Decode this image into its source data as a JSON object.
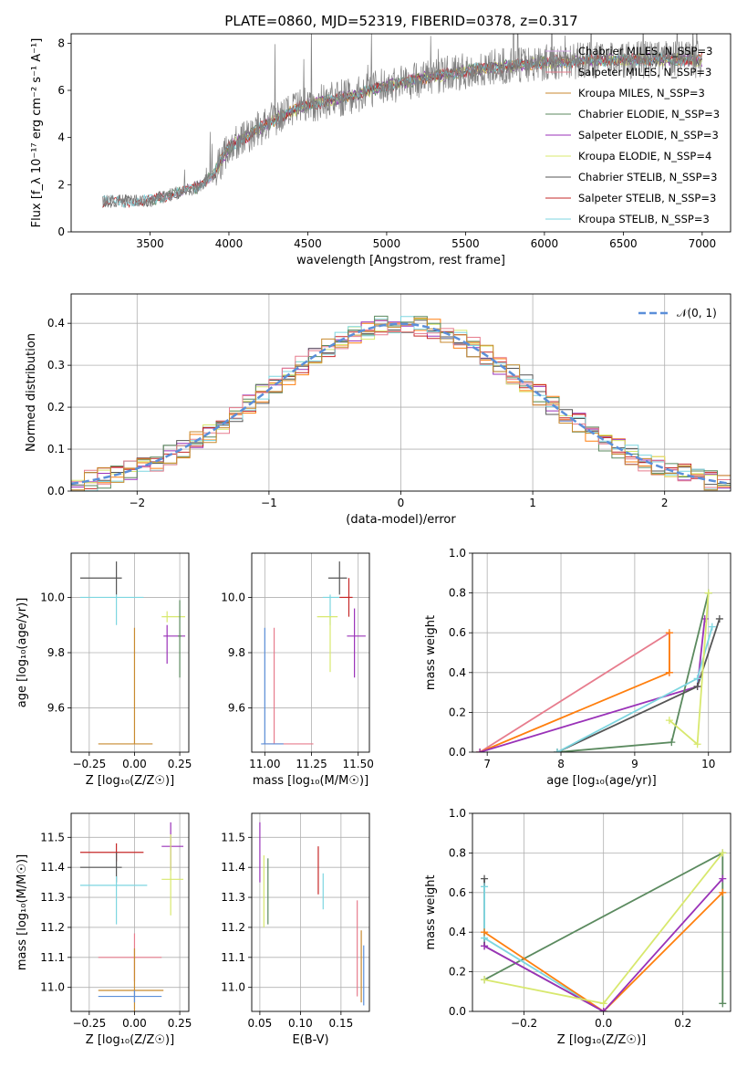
{
  "figure": {
    "title": "PLATE=0860, MJD=52319, FIBERID=0378, z=0.317"
  },
  "chart_data": [
    {
      "id": "spectrum",
      "type": "line",
      "xlabel": "wavelength [Angstrom, rest frame]",
      "ylabel": "Flux [f_λ 10⁻¹⁷ erg cm⁻² s⁻¹ A⁻¹]",
      "xlim": [
        3000,
        7180
      ],
      "ylim": [
        0,
        8.4
      ],
      "xticks": [
        3500,
        4000,
        4500,
        5000,
        5500,
        6000,
        6500,
        7000
      ],
      "yticks": [
        0,
        2,
        4,
        6,
        8
      ],
      "grid": false,
      "legend_position": "top-right",
      "data_shape": {
        "x": [
          3200,
          3500,
          3800,
          3900,
          4000,
          4300,
          4500,
          4800,
          5000,
          5300,
          5600,
          6000,
          6500,
          7000
        ],
        "y": [
          1.3,
          1.3,
          1.9,
          2.4,
          3.6,
          4.8,
          5.4,
          5.8,
          6.2,
          6.6,
          6.9,
          7.2,
          7.3,
          7.3
        ]
      },
      "series": [
        {
          "name": "Chabrier MILES, N_SSP=3",
          "color": "#d5a8e3"
        },
        {
          "name": "Salpeter MILES, N_SSP=3",
          "color": "#e77c8d"
        },
        {
          "name": "Kroupa MILES, N_SSP=3",
          "color": "#c88a2f"
        },
        {
          "name": "Chabrier ELODIE, N_SSP=3",
          "color": "#5b8a5f"
        },
        {
          "name": "Salpeter ELODIE, N_SSP=3",
          "color": "#9a32b8"
        },
        {
          "name": "Kroupa ELODIE, N_SSP=4",
          "color": "#d8e86e"
        },
        {
          "name": "Chabrier STELIB, N_SSP=3",
          "color": "#555555"
        },
        {
          "name": "Salpeter STELIB, N_SSP=3",
          "color": "#c62828"
        },
        {
          "name": "Kroupa STELIB, N_SSP=3",
          "color": "#7dd6e0"
        }
      ]
    },
    {
      "id": "residuals",
      "type": "line",
      "xlabel": "(data-model)/error",
      "ylabel": "Normed distribution",
      "xlim": [
        -2.5,
        2.5
      ],
      "ylim": [
        0,
        0.47
      ],
      "xticks": [
        -2,
        -1,
        0,
        1,
        2
      ],
      "yticks": [
        0.0,
        0.1,
        0.2,
        0.3,
        0.4
      ],
      "grid": true,
      "legend_position": "top-right",
      "legend": "𝒩(0, 1)",
      "gaussian_color": "#5b8fd9",
      "histogram_colors": [
        "#ff7f0e",
        "#9a32b8",
        "#d8e86e",
        "#555555",
        "#c62828",
        "#7dd6e0",
        "#5b8a5f",
        "#e77c8d",
        "#c88a2f"
      ]
    },
    {
      "id": "age_vs_Z",
      "type": "scatter",
      "xlabel": "Z [log₁₀(Z/Z☉)]",
      "ylabel": "age  [log₁₀(age/yr)]",
      "xlim": [
        -0.35,
        0.3
      ],
      "ylim": [
        9.44,
        10.16
      ],
      "xticks": [
        -0.25,
        0.0,
        0.25
      ],
      "yticks": [
        9.6,
        9.8,
        10.0
      ],
      "grid": true,
      "points": [
        {
          "x": -0.1,
          "y": 10.07,
          "xerr": [
            0.2,
            0.03
          ],
          "yerr": [
            0.06,
            0.06
          ],
          "color": "#555555"
        },
        {
          "x": -0.1,
          "y": 10.0,
          "xerr": [
            0.2,
            0.15
          ],
          "yerr": [
            0.1,
            0.01
          ],
          "color": "#7dd6e0"
        },
        {
          "x": 0.18,
          "y": 9.93,
          "xerr": [
            0.03,
            0.1
          ],
          "yerr": [
            0.02,
            0.02
          ],
          "color": "#d8e86e"
        },
        {
          "x": 0.18,
          "y": 9.86,
          "xerr": [
            0.02,
            0.1
          ],
          "yerr": [
            0.1,
            0.04
          ],
          "color": "#9a32b8"
        },
        {
          "x": 0.25,
          "y": 9.86,
          "xerr": [
            0.01,
            0.01
          ],
          "yerr": [
            0.15,
            0.13
          ],
          "color": "#5b8a5f"
        },
        {
          "x": 0.0,
          "y": 9.47,
          "xerr": [
            0.2,
            0.1
          ],
          "yerr": [
            0.0,
            0.42
          ],
          "color": "#c88a2f"
        }
      ]
    },
    {
      "id": "age_vs_mass",
      "type": "scatter",
      "xlabel": "mass [log₁₀(M/M☉)]",
      "ylabel": "",
      "xlim": [
        10.93,
        11.56
      ],
      "ylim": [
        9.44,
        10.16
      ],
      "xticks": [
        11.0,
        11.25,
        11.5
      ],
      "yticks": [
        9.6,
        9.8,
        10.0
      ],
      "grid": true,
      "points": [
        {
          "x": 11.4,
          "y": 10.07,
          "xerr": [
            0.06,
            0.04
          ],
          "yerr": [
            0.06,
            0.06
          ],
          "color": "#555555"
        },
        {
          "x": 11.35,
          "y": 10.0,
          "xerr": [
            0.04,
            0.05
          ],
          "yerr": [
            0.1,
            0.01
          ],
          "color": "#7dd6e0"
        },
        {
          "x": 11.45,
          "y": 10.0,
          "xerr": [
            0.05,
            0.02
          ],
          "yerr": [
            0.07,
            0.07
          ],
          "color": "#c62828"
        },
        {
          "x": 11.35,
          "y": 9.93,
          "xerr": [
            0.07,
            0.04
          ],
          "yerr": [
            0.2,
            0.0
          ],
          "color": "#d8e86e"
        },
        {
          "x": 11.48,
          "y": 9.86,
          "xerr": [
            0.04,
            0.06
          ],
          "yerr": [
            0.15,
            0.1
          ],
          "color": "#9a32b8"
        },
        {
          "x": 11.05,
          "y": 9.47,
          "xerr": [
            0.06,
            0.21
          ],
          "yerr": [
            0.0,
            0.42
          ],
          "color": "#e77c8d"
        },
        {
          "x": 11.0,
          "y": 9.47,
          "xerr": [
            0.02,
            0.1
          ],
          "yerr": [
            0.0,
            0.42
          ],
          "color": "#5b8fd9"
        }
      ]
    },
    {
      "id": "mw_vs_age",
      "type": "line",
      "xlabel": "age  [log₁₀(age/yr)]",
      "ylabel": "mass weight",
      "xlim": [
        6.8,
        10.3
      ],
      "ylim": [
        0.0,
        1.0
      ],
      "xticks": [
        7,
        8,
        9,
        10
      ],
      "yticks": [
        0.0,
        0.2,
        0.4,
        0.6,
        0.8,
        1.0
      ],
      "grid": true,
      "series": [
        {
          "color": "#e77c8d",
          "x": [
            6.9,
            9.47,
            9.47
          ],
          "y": [
            0.0,
            0.6,
            0.4
          ]
        },
        {
          "color": "#ff7f0e",
          "x": [
            6.9,
            9.47,
            9.47
          ],
          "y": [
            0.0,
            0.4,
            0.6
          ]
        },
        {
          "color": "#9a32b8",
          "x": [
            6.9,
            9.85,
            9.95
          ],
          "y": [
            0.0,
            0.33,
            0.67
          ]
        },
        {
          "color": "#5b8a5f",
          "x": [
            7.95,
            9.5,
            10.0
          ],
          "y": [
            0.0,
            0.05,
            0.8
          ]
        },
        {
          "color": "#555555",
          "x": [
            7.95,
            9.85,
            10.15
          ],
          "y": [
            0.0,
            0.33,
            0.67
          ]
        },
        {
          "color": "#7dd6e0",
          "x": [
            7.95,
            9.85,
            10.05
          ],
          "y": [
            0.0,
            0.37,
            0.63
          ]
        },
        {
          "color": "#d8e86e",
          "x": [
            9.47,
            9.85,
            10.0
          ],
          "y": [
            0.16,
            0.04,
            0.8
          ]
        }
      ]
    },
    {
      "id": "mass_vs_Z",
      "type": "scatter",
      "xlabel": "Z [log₁₀(Z/Z☉)]",
      "ylabel": "mass [log₁₀(M/M☉)]",
      "xlim": [
        -0.35,
        0.3
      ],
      "ylim": [
        10.92,
        11.58
      ],
      "xticks": [
        -0.25,
        0.0,
        0.25
      ],
      "yticks": [
        11.0,
        11.1,
        11.2,
        11.3,
        11.4,
        11.5
      ],
      "grid": true,
      "points": [
        {
          "x": -0.1,
          "y": 11.45,
          "xerr": [
            0.2,
            0.15
          ],
          "yerr": [
            0.03,
            0.03
          ],
          "color": "#c62828"
        },
        {
          "x": -0.1,
          "y": 11.4,
          "xerr": [
            0.2,
            0.03
          ],
          "yerr": [
            0.05,
            0.05
          ],
          "color": "#555555"
        },
        {
          "x": -0.1,
          "y": 11.34,
          "xerr": [
            0.2,
            0.17
          ],
          "yerr": [
            0.13,
            0.03
          ],
          "color": "#7dd6e0"
        },
        {
          "x": 0.2,
          "y": 11.47,
          "xerr": [
            0.05,
            0.07
          ],
          "yerr": [
            0.08,
            0.08
          ],
          "color": "#9a32b8"
        },
        {
          "x": 0.2,
          "y": 11.36,
          "xerr": [
            0.05,
            0.07
          ],
          "yerr": [
            0.12,
            0.15
          ],
          "color": "#d8e86e"
        },
        {
          "x": 0.0,
          "y": 11.1,
          "xerr": [
            0.2,
            0.15
          ],
          "yerr": [
            0.08,
            0.08
          ],
          "color": "#e77c8d"
        },
        {
          "x": 0.0,
          "y": 10.99,
          "xerr": [
            0.2,
            0.16
          ],
          "yerr": [
            0.08,
            0.14
          ],
          "color": "#c88a2f"
        },
        {
          "x": 0.0,
          "y": 10.97,
          "xerr": [
            0.2,
            0.15
          ],
          "yerr": [
            0.02,
            0.02
          ],
          "color": "#5b8fd9"
        }
      ]
    },
    {
      "id": "mass_vs_ebv",
      "type": "scatter",
      "xlabel": "E(B-V)",
      "ylabel": "",
      "xlim": [
        0.04,
        0.185
      ],
      "ylim": [
        10.92,
        11.58
      ],
      "xticks": [
        0.05,
        0.1,
        0.15
      ],
      "yticks": [
        11.0,
        11.1,
        11.2,
        11.3,
        11.4,
        11.5
      ],
      "grid": true,
      "points": [
        {
          "x": 0.05,
          "y": 11.45,
          "yerr": [
            0.1,
            0.1
          ],
          "color": "#9a32b8"
        },
        {
          "x": 0.055,
          "y": 11.32,
          "yerr": [
            0.12,
            0.12
          ],
          "color": "#d8e86e"
        },
        {
          "x": 0.06,
          "y": 11.32,
          "yerr": [
            0.11,
            0.11
          ],
          "color": "#5b8a5f"
        },
        {
          "x": 0.122,
          "y": 11.39,
          "yerr": [
            0.08,
            0.08
          ],
          "color": "#c62828"
        },
        {
          "x": 0.128,
          "y": 11.32,
          "yerr": [
            0.06,
            0.06
          ],
          "color": "#7dd6e0"
        },
        {
          "x": 0.17,
          "y": 11.13,
          "yerr": [
            0.16,
            0.16
          ],
          "color": "#e77c8d"
        },
        {
          "x": 0.175,
          "y": 11.07,
          "yerr": [
            0.12,
            0.12
          ],
          "color": "#c88a2f"
        },
        {
          "x": 0.178,
          "y": 11.04,
          "yerr": [
            0.1,
            0.1
          ],
          "color": "#5b8fd9"
        }
      ]
    },
    {
      "id": "mw_vs_Z",
      "type": "line",
      "xlabel": "Z [log₁₀(Z/Z☉)]",
      "ylabel": "mass weight",
      "xlim": [
        -0.33,
        0.32
      ],
      "ylim": [
        0.0,
        1.0
      ],
      "xticks": [
        -0.2,
        0.0,
        0.2
      ],
      "yticks": [
        0.0,
        0.2,
        0.4,
        0.6,
        0.8,
        1.0
      ],
      "grid": true,
      "series": [
        {
          "color": "#5b8a5f",
          "x": [
            -0.3,
            0.3,
            0.3
          ],
          "y": [
            0.16,
            0.8,
            0.04
          ]
        },
        {
          "color": "#555555",
          "x": [
            -0.3,
            -0.3,
            0.0
          ],
          "y": [
            0.67,
            0.33,
            0.0
          ]
        },
        {
          "color": "#7dd6e0",
          "x": [
            -0.3,
            -0.3,
            0.0
          ],
          "y": [
            0.63,
            0.37,
            0.0
          ]
        },
        {
          "color": "#ff7f0e",
          "x": [
            -0.3,
            0.0,
            0.3
          ],
          "y": [
            0.4,
            0.0,
            0.6
          ]
        },
        {
          "color": "#9a32b8",
          "x": [
            -0.3,
            0.0,
            0.3
          ],
          "y": [
            0.33,
            0.0,
            0.67
          ]
        },
        {
          "color": "#d8e86e",
          "x": [
            -0.3,
            0.0,
            0.3
          ],
          "y": [
            0.16,
            0.04,
            0.8
          ]
        }
      ]
    }
  ]
}
